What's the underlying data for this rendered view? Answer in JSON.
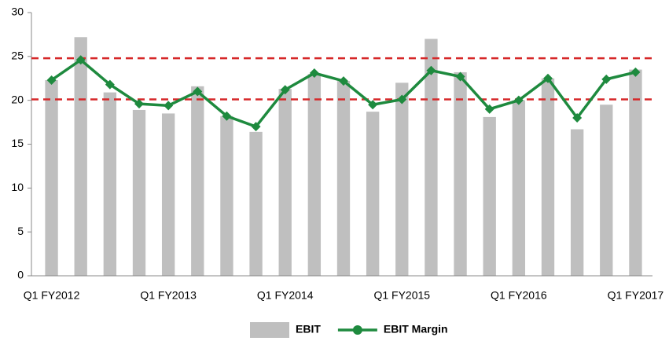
{
  "chart_data": {
    "type": "bar_line",
    "categories": [
      "Q1 FY2012",
      null,
      null,
      null,
      "Q1 FY2013",
      null,
      null,
      null,
      "Q1 FY2014",
      null,
      null,
      null,
      "Q1 FY2015",
      null,
      null,
      null,
      "Q1 FY2016",
      null,
      null,
      null,
      "Q1 FY2017"
    ],
    "series": [
      {
        "name": "EBIT",
        "type": "bar",
        "color": "#bfbfbf",
        "values": [
          22.3,
          27.2,
          20.9,
          18.9,
          18.5,
          21.6,
          18.2,
          16.4,
          21.3,
          23.0,
          22.2,
          18.7,
          22.0,
          27.0,
          23.2,
          18.1,
          20.0,
          22.5,
          16.7,
          19.5,
          23.5
        ]
      },
      {
        "name": "EBIT Margin",
        "type": "line",
        "color": "#1e8a3e",
        "values": [
          22.3,
          24.6,
          21.8,
          19.6,
          19.4,
          21.0,
          18.2,
          17.0,
          21.2,
          23.1,
          22.2,
          19.5,
          20.1,
          23.4,
          22.7,
          19.0,
          20.0,
          22.5,
          18.0,
          22.4,
          23.2
        ]
      }
    ],
    "reference_lines": {
      "values": [
        24.8,
        20.1
      ],
      "color": "#d62728"
    },
    "ylim": [
      0,
      30
    ],
    "yticks": [
      0,
      5,
      10,
      15,
      20,
      25,
      30
    ],
    "grid": false
  }
}
